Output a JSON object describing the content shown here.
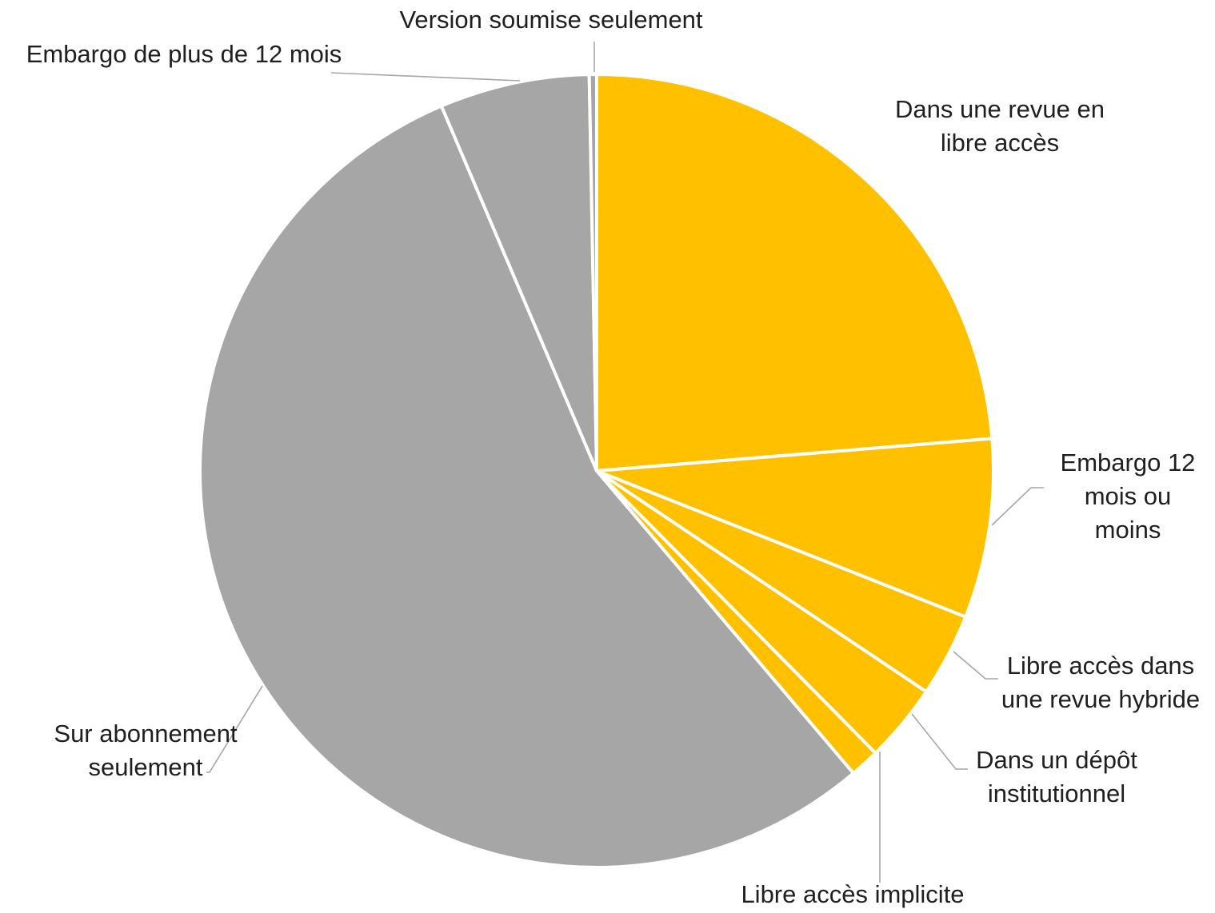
{
  "chart_data": {
    "type": "pie",
    "start_angle_deg": 0,
    "direction": "clockwise",
    "slices": [
      {
        "label": "Dans une revue en libre accès",
        "lines": [
          "Dans une revue en",
          "libre accès"
        ],
        "value": 23.7,
        "color": "#FFC000"
      },
      {
        "label": "Embargo 12 mois ou moins",
        "lines": [
          "Embargo 12",
          "mois ou",
          "moins"
        ],
        "value": 7.3,
        "color": "#FFC000"
      },
      {
        "label": "Libre accès dans une revue hybride",
        "lines": [
          "Libre accès dans",
          "une revue hybride"
        ],
        "value": 3.4,
        "color": "#FFC000"
      },
      {
        "label": "Dans un dépôt institutionnel",
        "lines": [
          "Dans un dépôt",
          "institutionnel"
        ],
        "value": 3.2,
        "color": "#FFC000"
      },
      {
        "label": "Libre accès implicite",
        "lines": [
          "Libre accès implicite"
        ],
        "value": 1.2,
        "color": "#FFC000"
      },
      {
        "label": "Sur abonnement seulement",
        "lines": [
          "Sur abonnement",
          "seulement"
        ],
        "value": 54.8,
        "color": "#A6A6A6"
      },
      {
        "label": "Embargo de plus de 12 mois",
        "lines": [
          "Embargo de plus de 12 mois"
        ],
        "value": 6.1,
        "color": "#A6A6A6"
      },
      {
        "label": "Version soumise seulement",
        "lines": [
          "Version soumise seulement"
        ],
        "value": 0.3,
        "color": "#A6A6A6"
      }
    ]
  }
}
